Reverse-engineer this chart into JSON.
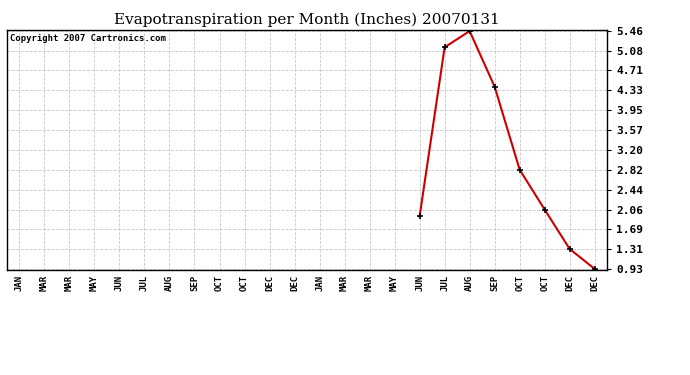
{
  "title": "Evapotranspiration per Month (Inches) 20070131",
  "copyright": "Copyright 2007 Cartronics.com",
  "x_labels": [
    "JAN",
    "MAR",
    "MAR",
    "MAY",
    "JUN",
    "JUL",
    "AUG",
    "SEP",
    "OCT",
    "OCT",
    "DEC",
    "DEC",
    "JAN",
    "MAR",
    "MAR",
    "MAY",
    "JUN",
    "JUL",
    "AUG",
    "SEP",
    "OCT",
    "OCT",
    "DEC",
    "DEC"
  ],
  "y_values_raw": [
    null,
    null,
    null,
    null,
    null,
    null,
    null,
    null,
    null,
    null,
    null,
    null,
    null,
    null,
    null,
    null,
    1.93,
    5.15,
    5.46,
    4.4,
    2.82,
    2.06,
    1.31,
    0.93
  ],
  "y_ticks": [
    0.93,
    1.31,
    1.69,
    2.06,
    2.44,
    2.82,
    3.2,
    3.57,
    3.95,
    4.33,
    4.71,
    5.08,
    5.46
  ],
  "y_min": 0.93,
  "y_max": 5.46,
  "line_color": "#cc0000",
  "marker_color": "#000000",
  "bg_color": "#ffffff",
  "plot_bg_color": "#ffffff",
  "grid_color": "#c8c8c8",
  "title_fontsize": 11,
  "copyright_fontsize": 6.5,
  "ytick_fontsize": 8,
  "xtick_fontsize": 6.5
}
